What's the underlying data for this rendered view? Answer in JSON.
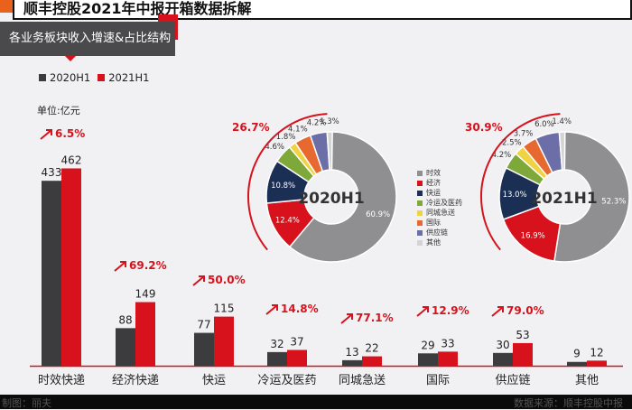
{
  "header": {
    "title": "顺丰控股2021年中报开箱数据拆解",
    "section_label": "各业务板块收入增速&占比结构",
    "unit": "单位:亿元"
  },
  "footer": {
    "left": "制图：丽夫",
    "right": "数据来源：顺丰控股中报"
  },
  "colors": {
    "series_2020": "#3c3c3e",
    "series_2021": "#d7121c",
    "accent": "#d7121c"
  },
  "chart_data": [
    {
      "type": "bar",
      "categories": [
        "时效快递",
        "经济快递",
        "快运",
        "冷运及医药",
        "同城急送",
        "国际",
        "供应链",
        "其他"
      ],
      "series": [
        {
          "name": "2020H1",
          "values": [
            433,
            88,
            77,
            32,
            13,
            29,
            30,
            9
          ]
        },
        {
          "name": "2021H1",
          "values": [
            462,
            149,
            115,
            37,
            22,
            33,
            53,
            12
          ]
        }
      ],
      "growth_labels": [
        "6.5%",
        "69.2%",
        "50.0%",
        "14.8%",
        "77.1%",
        "12.9%",
        "79.0%",
        ""
      ],
      "legend": "top-left",
      "grid": false
    },
    {
      "type": "pie",
      "title": "2020H1",
      "labels": [
        "时效",
        "经济",
        "快运",
        "冷运及医药",
        "同城急送",
        "国际",
        "供应链",
        "其他"
      ],
      "values": [
        60.9,
        12.4,
        10.8,
        4.6,
        1.8,
        4.1,
        4.2,
        1.3
      ],
      "value_labels": [
        "60.9%",
        "12.4%",
        "10.8%",
        "4.6%",
        "1.8%",
        "4.1%",
        "4.2%",
        "1.3%"
      ],
      "annotation": "26.7%",
      "colors": [
        "#8f8f91",
        "#d7121c",
        "#1b2f55",
        "#7ea83a",
        "#efd343",
        "#e8692f",
        "#6c6ea8",
        "#d4d4d4"
      ]
    },
    {
      "type": "pie",
      "title": "2021H1",
      "labels": [
        "时效",
        "经济",
        "快运",
        "冷运及医药",
        "同城急送",
        "国际",
        "供应链",
        "其他"
      ],
      "values": [
        52.3,
        16.9,
        13.0,
        4.2,
        2.5,
        3.7,
        6.0,
        1.4
      ],
      "value_labels": [
        "52.3%",
        "16.9%",
        "13.0%",
        "4.2%",
        "2.5%",
        "3.7%",
        "6.0%",
        "1.4%"
      ],
      "annotation": "30.9%",
      "colors": [
        "#8f8f91",
        "#d7121c",
        "#1b2f55",
        "#7ea83a",
        "#efd343",
        "#e8692f",
        "#6c6ea8",
        "#d4d4d4"
      ]
    }
  ]
}
